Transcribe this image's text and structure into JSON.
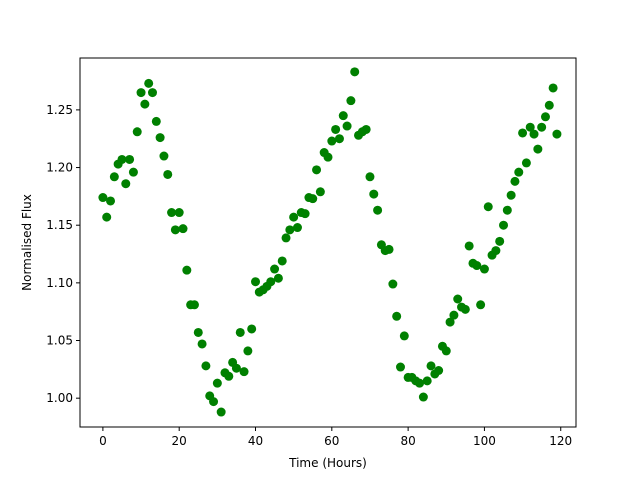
{
  "chart_data": {
    "type": "scatter",
    "title": "",
    "xlabel": "Time (Hours)",
    "ylabel": "Normalised Flux",
    "xlim": [
      -6,
      124
    ],
    "ylim": [
      0.975,
      1.295
    ],
    "xticks": [
      0,
      20,
      40,
      60,
      80,
      100,
      120
    ],
    "yticks": [
      1.0,
      1.05,
      1.1,
      1.15,
      1.2,
      1.25
    ],
    "xtick_labels": [
      "0",
      "20",
      "40",
      "60",
      "80",
      "100",
      "120"
    ],
    "ytick_labels": [
      "1.00",
      "1.05",
      "1.10",
      "1.15",
      "1.20",
      "1.25"
    ],
    "grid": false,
    "marker_color": "#008000",
    "points": [
      [
        0,
        1.174
      ],
      [
        1,
        1.157
      ],
      [
        2,
        1.171
      ],
      [
        3,
        1.192
      ],
      [
        4,
        1.203
      ],
      [
        5,
        1.207
      ],
      [
        6,
        1.186
      ],
      [
        7,
        1.207
      ],
      [
        8,
        1.196
      ],
      [
        9,
        1.231
      ],
      [
        10,
        1.265
      ],
      [
        11,
        1.255
      ],
      [
        12,
        1.273
      ],
      [
        13,
        1.265
      ],
      [
        14,
        1.24
      ],
      [
        15,
        1.226
      ],
      [
        16,
        1.21
      ],
      [
        17,
        1.194
      ],
      [
        18,
        1.161
      ],
      [
        19,
        1.146
      ],
      [
        20,
        1.161
      ],
      [
        21,
        1.147
      ],
      [
        22,
        1.111
      ],
      [
        23,
        1.081
      ],
      [
        24,
        1.081
      ],
      [
        25,
        1.057
      ],
      [
        26,
        1.047
      ],
      [
        27,
        1.028
      ],
      [
        28,
        1.002
      ],
      [
        29,
        0.997
      ],
      [
        30,
        1.013
      ],
      [
        31,
        0.988
      ],
      [
        32,
        1.022
      ],
      [
        33,
        1.019
      ],
      [
        34,
        1.031
      ],
      [
        35,
        1.026
      ],
      [
        36,
        1.057
      ],
      [
        37,
        1.023
      ],
      [
        38,
        1.041
      ],
      [
        39,
        1.06
      ],
      [
        40,
        1.101
      ],
      [
        41,
        1.092
      ],
      [
        42,
        1.094
      ],
      [
        43,
        1.097
      ],
      [
        44,
        1.101
      ],
      [
        45,
        1.112
      ],
      [
        46,
        1.104
      ],
      [
        47,
        1.119
      ],
      [
        48,
        1.139
      ],
      [
        49,
        1.146
      ],
      [
        50,
        1.157
      ],
      [
        51,
        1.148
      ],
      [
        52,
        1.161
      ],
      [
        53,
        1.16
      ],
      [
        54,
        1.174
      ],
      [
        55,
        1.173
      ],
      [
        56,
        1.198
      ],
      [
        57,
        1.179
      ],
      [
        58,
        1.213
      ],
      [
        59,
        1.209
      ],
      [
        60,
        1.223
      ],
      [
        61,
        1.233
      ],
      [
        62,
        1.225
      ],
      [
        63,
        1.245
      ],
      [
        64,
        1.236
      ],
      [
        65,
        1.258
      ],
      [
        66,
        1.283
      ],
      [
        67,
        1.228
      ],
      [
        68,
        1.231
      ],
      [
        69,
        1.233
      ],
      [
        70,
        1.192
      ],
      [
        71,
        1.177
      ],
      [
        72,
        1.163
      ],
      [
        73,
        1.133
      ],
      [
        74,
        1.128
      ],
      [
        75,
        1.129
      ],
      [
        76,
        1.099
      ],
      [
        77,
        1.071
      ],
      [
        78,
        1.027
      ],
      [
        79,
        1.054
      ],
      [
        80,
        1.018
      ],
      [
        81,
        1.018
      ],
      [
        82,
        1.015
      ],
      [
        83,
        1.013
      ],
      [
        84,
        1.001
      ],
      [
        85,
        1.015
      ],
      [
        86,
        1.028
      ],
      [
        87,
        1.021
      ],
      [
        88,
        1.024
      ],
      [
        89,
        1.045
      ],
      [
        90,
        1.041
      ],
      [
        91,
        1.066
      ],
      [
        92,
        1.072
      ],
      [
        93,
        1.086
      ],
      [
        94,
        1.079
      ],
      [
        95,
        1.077
      ],
      [
        96,
        1.132
      ],
      [
        97,
        1.117
      ],
      [
        98,
        1.115
      ],
      [
        99,
        1.081
      ],
      [
        100,
        1.112
      ],
      [
        101,
        1.166
      ],
      [
        102,
        1.124
      ],
      [
        103,
        1.128
      ],
      [
        104,
        1.136
      ],
      [
        105,
        1.15
      ],
      [
        106,
        1.163
      ],
      [
        107,
        1.176
      ],
      [
        108,
        1.188
      ],
      [
        109,
        1.196
      ],
      [
        110,
        1.23
      ],
      [
        111,
        1.204
      ],
      [
        112,
        1.235
      ],
      [
        113,
        1.229
      ],
      [
        114,
        1.216
      ],
      [
        115,
        1.235
      ],
      [
        116,
        1.244
      ],
      [
        117,
        1.254
      ],
      [
        118,
        1.269
      ],
      [
        119,
        1.229
      ]
    ]
  }
}
